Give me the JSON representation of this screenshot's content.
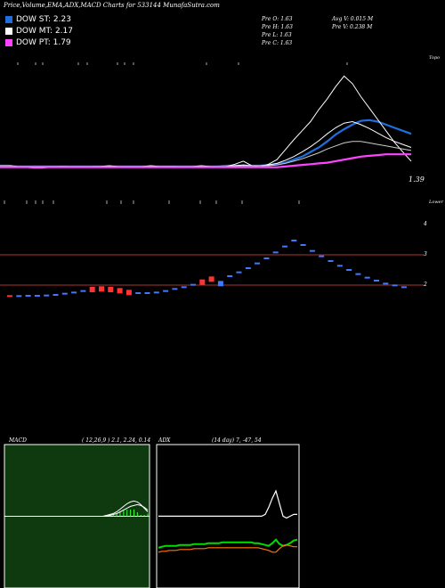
{
  "header": {
    "title": "Price,Volume,EMA,ADX,MACD Charts for 533144  MunafaSutra.com"
  },
  "legend": [
    {
      "label": "DOW ST: 2.23",
      "color": "#1f6fe0"
    },
    {
      "label": "DOW MT: 2.17",
      "color": "#ffffff"
    },
    {
      "label": "DOW PT: 1.79",
      "color": "#ff44ff"
    }
  ],
  "info": {
    "col1": [
      "Pre   O: 1.63",
      "Pre   H: 1.63",
      "Pre   L: 1.63",
      "Pre   C: 1.63"
    ],
    "col2": [
      "Avg V: 0.015 M",
      "Pre   V: 0.238  M"
    ]
  },
  "chart_data": [
    {
      "type": "line",
      "name": "price-ema",
      "side_labels": {
        "top": "Topo",
        "bottom": "Lower"
      },
      "last_price_label": "1.39",
      "series": [
        {
          "color": "#1f6fe0",
          "values": [
            1.64,
            1.64,
            1.63,
            1.63,
            1.63,
            1.63,
            1.63,
            1.63,
            1.63,
            1.63,
            1.63,
            1.63,
            1.63,
            1.63,
            1.63,
            1.63,
            1.63,
            1.63,
            1.63,
            1.63,
            1.63,
            1.63,
            1.63,
            1.63,
            1.63,
            1.63,
            1.63,
            1.64,
            1.64,
            1.64,
            1.64,
            1.64,
            1.65,
            1.66,
            1.68,
            1.72,
            1.76,
            1.82,
            1.88,
            1.96,
            2.05,
            2.12,
            2.18,
            2.23,
            2.24,
            2.22,
            2.18,
            2.14,
            2.1,
            2.06
          ]
        },
        {
          "color": "#ffffff",
          "values": [
            1.64,
            1.64,
            1.63,
            1.62,
            1.61,
            1.61,
            1.62,
            1.63,
            1.63,
            1.62,
            1.62,
            1.63,
            1.63,
            1.64,
            1.63,
            1.62,
            1.62,
            1.63,
            1.64,
            1.63,
            1.63,
            1.63,
            1.62,
            1.63,
            1.64,
            1.63,
            1.62,
            1.63,
            1.66,
            1.7,
            1.64,
            1.62,
            1.66,
            1.72,
            1.85,
            1.98,
            2.1,
            2.22,
            2.38,
            2.52,
            2.68,
            2.82,
            2.72,
            2.55,
            2.4,
            2.25,
            2.1,
            1.95,
            1.82,
            1.7
          ]
        },
        {
          "color": "#ffffff",
          "values": [
            1.64,
            1.64,
            1.63,
            1.63,
            1.63,
            1.63,
            1.63,
            1.63,
            1.63,
            1.63,
            1.63,
            1.63,
            1.63,
            1.63,
            1.63,
            1.63,
            1.63,
            1.63,
            1.63,
            1.63,
            1.63,
            1.63,
            1.63,
            1.63,
            1.63,
            1.63,
            1.63,
            1.63,
            1.64,
            1.65,
            1.64,
            1.64,
            1.65,
            1.67,
            1.71,
            1.76,
            1.82,
            1.89,
            1.97,
            2.06,
            2.14,
            2.2,
            2.22,
            2.18,
            2.13,
            2.07,
            2.01,
            1.96,
            1.92,
            1.88
          ]
        },
        {
          "color": "#cccccc",
          "values": [
            1.64,
            1.64,
            1.63,
            1.63,
            1.63,
            1.63,
            1.63,
            1.63,
            1.63,
            1.63,
            1.63,
            1.63,
            1.63,
            1.63,
            1.63,
            1.63,
            1.63,
            1.63,
            1.63,
            1.63,
            1.63,
            1.63,
            1.63,
            1.63,
            1.63,
            1.63,
            1.63,
            1.63,
            1.63,
            1.64,
            1.64,
            1.64,
            1.64,
            1.65,
            1.67,
            1.7,
            1.73,
            1.77,
            1.81,
            1.86,
            1.9,
            1.94,
            1.96,
            1.96,
            1.94,
            1.92,
            1.9,
            1.88,
            1.86,
            1.84
          ]
        },
        {
          "color": "#ff44ff",
          "values": [
            1.62,
            1.62,
            1.62,
            1.62,
            1.62,
            1.62,
            1.62,
            1.62,
            1.62,
            1.62,
            1.62,
            1.62,
            1.62,
            1.62,
            1.62,
            1.62,
            1.62,
            1.62,
            1.62,
            1.62,
            1.62,
            1.62,
            1.62,
            1.62,
            1.62,
            1.62,
            1.62,
            1.62,
            1.62,
            1.62,
            1.62,
            1.62,
            1.62,
            1.62,
            1.63,
            1.64,
            1.65,
            1.66,
            1.67,
            1.68,
            1.7,
            1.72,
            1.74,
            1.76,
            1.77,
            1.78,
            1.79,
            1.79,
            1.79,
            1.79
          ]
        }
      ],
      "ylim": [
        1.3,
        3.0
      ]
    },
    {
      "type": "bar",
      "name": "renko",
      "y_ticks": [
        "4",
        "3",
        "2"
      ],
      "boxes": [
        {
          "v": 1.58,
          "c": "#ff3333"
        },
        {
          "v": 1.58,
          "c": "#4477ff"
        },
        {
          "v": 1.59,
          "c": "#4477ff"
        },
        {
          "v": 1.59,
          "c": "#4477ff"
        },
        {
          "v": 1.6,
          "c": "#4477ff"
        },
        {
          "v": 1.62,
          "c": "#4477ff"
        },
        {
          "v": 1.66,
          "c": "#4477ff"
        },
        {
          "v": 1.7,
          "c": "#4477ff"
        },
        {
          "v": 1.75,
          "c": "#4477ff"
        },
        {
          "v": 1.8,
          "c": "#ff3333"
        },
        {
          "v": 1.82,
          "c": "#ff3333"
        },
        {
          "v": 1.8,
          "c": "#ff3333"
        },
        {
          "v": 1.76,
          "c": "#ff3333"
        },
        {
          "v": 1.7,
          "c": "#ff3333"
        },
        {
          "v": 1.68,
          "c": "#4477ff"
        },
        {
          "v": 1.68,
          "c": "#4477ff"
        },
        {
          "v": 1.7,
          "c": "#4477ff"
        },
        {
          "v": 1.75,
          "c": "#4477ff"
        },
        {
          "v": 1.82,
          "c": "#4477ff"
        },
        {
          "v": 1.88,
          "c": "#4477ff"
        },
        {
          "v": 1.96,
          "c": "#4477ff"
        },
        {
          "v": 2.05,
          "c": "#ff3333"
        },
        {
          "v": 2.15,
          "c": "#ff3333"
        },
        {
          "v": 2.0,
          "c": "#4477ff"
        },
        {
          "v": 2.25,
          "c": "#4477ff"
        },
        {
          "v": 2.38,
          "c": "#4477ff"
        },
        {
          "v": 2.52,
          "c": "#4477ff"
        },
        {
          "v": 2.68,
          "c": "#4477ff"
        },
        {
          "v": 2.85,
          "c": "#4477ff"
        },
        {
          "v": 3.05,
          "c": "#4477ff"
        },
        {
          "v": 3.25,
          "c": "#4477ff"
        },
        {
          "v": 3.45,
          "c": "#4477ff"
        },
        {
          "v": 3.3,
          "c": "#4477ff"
        },
        {
          "v": 3.1,
          "c": "#4477ff"
        },
        {
          "v": 2.92,
          "c": "#4477ff"
        },
        {
          "v": 2.76,
          "c": "#4477ff"
        },
        {
          "v": 2.6,
          "c": "#4477ff"
        },
        {
          "v": 2.46,
          "c": "#4477ff"
        },
        {
          "v": 2.32,
          "c": "#4477ff"
        },
        {
          "v": 2.2,
          "c": "#4477ff"
        },
        {
          "v": 2.1,
          "c": "#4477ff"
        },
        {
          "v": 2.0,
          "c": "#4477ff"
        },
        {
          "v": 1.94,
          "c": "#4477ff"
        },
        {
          "v": 1.88,
          "c": "#4477ff"
        }
      ],
      "ylim": [
        1.2,
        4.2
      ]
    },
    {
      "type": "area",
      "name": "MACD",
      "label": "MACD",
      "params": "( 12,26,9 ) 2.1,  2.24,  0.14",
      "macd": [
        0,
        0,
        0,
        0,
        0,
        0,
        0,
        0,
        0,
        0,
        0,
        0,
        0,
        0,
        0,
        0,
        0,
        0,
        0,
        0,
        0,
        0,
        0,
        0,
        0,
        0,
        0,
        0,
        0,
        0.01,
        0.02,
        0.03,
        0.05,
        0.08,
        0.11,
        0.14,
        0.16,
        0.17,
        0.16,
        0.13,
        0.09,
        0.05
      ],
      "signal": [
        0,
        0,
        0,
        0,
        0,
        0,
        0,
        0,
        0,
        0,
        0,
        0,
        0,
        0,
        0,
        0,
        0,
        0,
        0,
        0,
        0,
        0,
        0,
        0,
        0,
        0,
        0,
        0,
        0,
        0,
        0.01,
        0.02,
        0.03,
        0.05,
        0.07,
        0.09,
        0.11,
        0.12,
        0.13,
        0.12,
        0.1,
        0.07
      ],
      "ylim": [
        -0.8,
        0.8
      ]
    },
    {
      "type": "line",
      "name": "ADX",
      "label": "ADX",
      "params": "(14  day) 7,  -47,  54",
      "series": [
        {
          "color": "#ffffff",
          "values": [
            60,
            60,
            60,
            60,
            60,
            60,
            60,
            60,
            60,
            60,
            60,
            60,
            60,
            60,
            60,
            60,
            60,
            60,
            60,
            60,
            60,
            60,
            60,
            60,
            60,
            60,
            60,
            60,
            60,
            60,
            62,
            70,
            80,
            88,
            74,
            60,
            58,
            60,
            62,
            62
          ]
        },
        {
          "color": "#00dd00",
          "values": [
            25,
            26,
            27,
            27,
            27,
            27,
            28,
            28,
            28,
            28,
            29,
            29,
            29,
            29,
            30,
            30,
            30,
            30,
            31,
            31,
            31,
            31,
            31,
            31,
            31,
            31,
            31,
            30,
            30,
            29,
            28,
            27,
            30,
            34,
            29,
            27,
            28,
            30,
            33,
            34
          ]
        },
        {
          "color": "#ff7700",
          "values": [
            20,
            21,
            21,
            22,
            22,
            22,
            23,
            23,
            23,
            23,
            24,
            24,
            24,
            24,
            25,
            25,
            25,
            25,
            25,
            25,
            25,
            25,
            25,
            25,
            25,
            25,
            25,
            25,
            25,
            24,
            23,
            22,
            20,
            20,
            24,
            27,
            28,
            27,
            26,
            26
          ]
        }
      ],
      "ylim": [
        0,
        100
      ]
    }
  ]
}
